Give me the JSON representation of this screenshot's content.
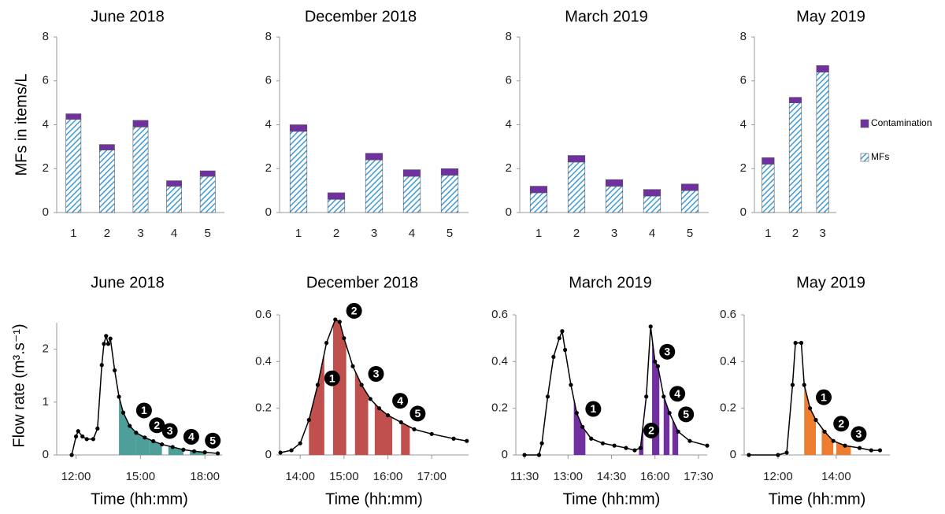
{
  "chart_data": [
    {
      "type": "bar",
      "title": "June 2018",
      "ylabel": "MFs in items/L",
      "stacked": true,
      "categories": [
        "1",
        "2",
        "3",
        "4",
        "5"
      ],
      "series": [
        {
          "color": "#3d9ad8",
          "hatch": true,
          "values": [
            4.25,
            2.85,
            3.9,
            1.2,
            1.65
          ]
        },
        {
          "color": "#7030a0",
          "values": [
            0.25,
            0.25,
            0.3,
            0.25,
            0.25
          ]
        }
      ],
      "ylim": [
        0,
        8
      ],
      "yticks": [
        0,
        2,
        4,
        6,
        8
      ]
    },
    {
      "type": "bar",
      "title": "December 2018",
      "stacked": true,
      "categories": [
        "1",
        "2",
        "3",
        "4",
        "5"
      ],
      "series": [
        {
          "color": "#3d9ad8",
          "hatch": true,
          "values": [
            3.7,
            0.6,
            2.4,
            1.65,
            1.7
          ]
        },
        {
          "color": "#7030a0",
          "values": [
            0.3,
            0.3,
            0.3,
            0.3,
            0.3
          ]
        }
      ],
      "ylim": [
        0,
        8
      ],
      "yticks": [
        0,
        2,
        4,
        6,
        8
      ]
    },
    {
      "type": "bar",
      "title": "March 2019",
      "stacked": true,
      "categories": [
        "1",
        "2",
        "3",
        "4",
        "5"
      ],
      "series": [
        {
          "color": "#3d9ad8",
          "hatch": true,
          "values": [
            0.9,
            2.3,
            1.2,
            0.75,
            1.0
          ]
        },
        {
          "color": "#7030a0",
          "values": [
            0.3,
            0.3,
            0.3,
            0.3,
            0.3
          ]
        }
      ],
      "ylim": [
        0,
        8
      ],
      "yticks": [
        0,
        2,
        4,
        6,
        8
      ]
    },
    {
      "type": "bar",
      "title": "May 2019",
      "stacked": true,
      "legend": "right",
      "categories": [
        "1",
        "2",
        "3"
      ],
      "series": [
        {
          "name": "MFs",
          "color": "#3d9ad8",
          "hatch": true,
          "values": [
            2.2,
            5.0,
            6.4
          ]
        },
        {
          "name": "Contamination",
          "color": "#7030a0",
          "values": [
            0.3,
            0.25,
            0.3
          ]
        }
      ],
      "ylim": [
        0,
        8
      ],
      "yticks": [
        0,
        2,
        4,
        6,
        8
      ]
    },
    {
      "type": "line",
      "title": "June 2018",
      "ylabel": "Flow rate (m³.s⁻¹)",
      "xlabel": "Time (hh:mm)",
      "color": "#000000",
      "fill_color": "#4e9f9a",
      "x": [
        11.8,
        12.0,
        12.1,
        12.3,
        12.5,
        12.8,
        13.0,
        13.2,
        13.3,
        13.4,
        13.5,
        13.6,
        13.8,
        14.0,
        14.2,
        14.5,
        14.8,
        15.2,
        15.6,
        16.0,
        16.5,
        17.0,
        17.5,
        18.0,
        18.6
      ],
      "values": [
        0,
        0.35,
        0.45,
        0.35,
        0.3,
        0.3,
        0.5,
        1.7,
        2.1,
        2.25,
        2.1,
        2.2,
        1.6,
        1.1,
        0.8,
        0.55,
        0.42,
        0.33,
        0.26,
        0.2,
        0.15,
        0.1,
        0.07,
        0.05,
        0.03
      ],
      "samples": [
        {
          "label": "1",
          "x": [
            14.0,
            14.8
          ]
        },
        {
          "label": "2",
          "x": [
            14.8,
            15.4
          ]
        },
        {
          "label": "3",
          "x": [
            15.4,
            16.0
          ]
        },
        {
          "label": "4",
          "x": [
            16.3,
            17.0
          ]
        },
        {
          "label": "5",
          "x": [
            17.3,
            18.0
          ]
        }
      ],
      "xlim": [
        11.1,
        18.8
      ],
      "xticks": [
        {
          "value": 12,
          "label": "12:00"
        },
        {
          "value": 15,
          "label": "15:00"
        },
        {
          "value": 18,
          "label": "18:00"
        }
      ],
      "ylim": [
        0,
        2.5
      ],
      "yticks": [
        0,
        1,
        2
      ]
    },
    {
      "type": "line",
      "title": "December 2018",
      "xlabel": "Time (hh:mm)",
      "color": "#000000",
      "fill_color": "#c0504d",
      "x": [
        13.55,
        13.8,
        14.0,
        14.2,
        14.4,
        14.6,
        14.8,
        14.9,
        15.0,
        15.2,
        15.4,
        15.6,
        15.8,
        16.0,
        16.3,
        16.6,
        17.0,
        17.5,
        17.8
      ],
      "values": [
        0.01,
        0.02,
        0.05,
        0.15,
        0.3,
        0.48,
        0.58,
        0.57,
        0.5,
        0.38,
        0.3,
        0.24,
        0.2,
        0.17,
        0.14,
        0.11,
        0.09,
        0.07,
        0.06
      ],
      "samples": [
        {
          "label": "1",
          "x": [
            14.2,
            14.55
          ]
        },
        {
          "label": "2",
          "x": [
            14.75,
            15.05
          ]
        },
        {
          "label": "3",
          "x": [
            15.25,
            15.55
          ]
        },
        {
          "label": "4",
          "x": [
            15.7,
            16.1
          ]
        },
        {
          "label": "5",
          "x": [
            16.3,
            16.5
          ]
        }
      ],
      "xlim": [
        13.53,
        17.84
      ],
      "xticks": [
        {
          "value": 14,
          "label": "14:00"
        },
        {
          "value": 15,
          "label": "15:00"
        },
        {
          "value": 16,
          "label": "16:00"
        },
        {
          "value": 17,
          "label": "17:00"
        }
      ],
      "ylim": [
        0,
        0.6
      ],
      "yticks": [
        0,
        0.2,
        0.4,
        0.6
      ]
    },
    {
      "type": "line",
      "title": "March 2019",
      "xlabel": "Time (hh:mm)",
      "color": "#000000",
      "fill_color": "#7030a0",
      "x": [
        11.5,
        12.0,
        12.1,
        12.3,
        12.5,
        12.7,
        12.8,
        12.9,
        13.1,
        13.3,
        13.5,
        13.8,
        14.2,
        14.6,
        15.0,
        15.3,
        15.5,
        15.7,
        15.85,
        16.0,
        16.1,
        16.3,
        16.5,
        16.8,
        17.2,
        17.8
      ],
      "values": [
        0,
        0,
        0.05,
        0.25,
        0.42,
        0.5,
        0.53,
        0.45,
        0.3,
        0.18,
        0.12,
        0.07,
        0.05,
        0.04,
        0.03,
        0.02,
        0.03,
        0.25,
        0.55,
        0.4,
        0.38,
        0.25,
        0.18,
        0.1,
        0.06,
        0.04
      ],
      "samples": [
        {
          "label": "1",
          "x": [
            13.2,
            13.6
          ]
        },
        {
          "label": "2",
          "x": [
            15.45,
            15.6
          ]
        },
        {
          "label": "3",
          "x": [
            15.9,
            16.15
          ]
        },
        {
          "label": "4",
          "x": [
            16.3,
            16.5
          ]
        },
        {
          "label": "5",
          "x": [
            16.6,
            16.8
          ]
        }
      ],
      "xlim": [
        11.2,
        17.8
      ],
      "xticks": [
        {
          "value": 11.5,
          "label": "11:30"
        },
        {
          "value": 13,
          "label": "13:00"
        },
        {
          "value": 14.5,
          "label": "14:30"
        },
        {
          "value": 16,
          "label": "16:00"
        },
        {
          "value": 17.5,
          "label": "17:30"
        }
      ],
      "ylim": [
        0,
        0.6
      ],
      "yticks": [
        0,
        0.2,
        0.4,
        0.6
      ]
    },
    {
      "type": "line",
      "title": "May 2019",
      "xlabel": "Time (hh:mm)",
      "color": "#000000",
      "fill_color": "#ed7d31",
      "x": [
        11.0,
        12.0,
        12.3,
        12.5,
        12.6,
        12.8,
        12.9,
        13.1,
        13.3,
        13.6,
        13.9,
        14.3,
        14.8,
        15.2,
        15.5
      ],
      "values": [
        0,
        0,
        0.01,
        0.3,
        0.48,
        0.48,
        0.3,
        0.2,
        0.15,
        0.1,
        0.06,
        0.04,
        0.03,
        0.02,
        0.02
      ],
      "samples": [
        {
          "label": "1",
          "x": [
            12.9,
            13.3
          ]
        },
        {
          "label": "2",
          "x": [
            13.5,
            13.9
          ]
        },
        {
          "label": "3",
          "x": [
            14.0,
            14.5
          ]
        }
      ],
      "xlim": [
        10.84,
        15.84
      ],
      "xticks": [
        {
          "value": 12,
          "label": "12:00"
        },
        {
          "value": 14,
          "label": "14:00"
        }
      ],
      "ylim": [
        0,
        0.6
      ],
      "yticks": [
        0,
        0.2,
        0.4,
        0.6
      ]
    }
  ]
}
